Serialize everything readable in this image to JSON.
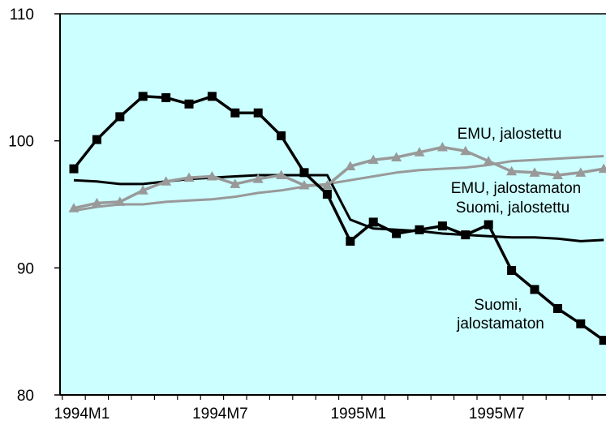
{
  "chart_data": {
    "type": "line",
    "title": "",
    "xlabel": "",
    "ylabel": "",
    "ylim": [
      80,
      110
    ],
    "yticks": [
      "80",
      "90",
      "100",
      "110"
    ],
    "x": [
      "1994M1",
      "1994M2",
      "1994M3",
      "1994M4",
      "1994M5",
      "1994M6",
      "1994M7",
      "1994M8",
      "1994M9",
      "1994M10",
      "1994M11",
      "1994M12",
      "1995M1",
      "1995M2",
      "1995M3",
      "1995M4",
      "1995M5",
      "1995M6",
      "1995M7",
      "1995M8",
      "1995M9",
      "1995M10",
      "1995M11",
      "1995M12"
    ],
    "xtick_labels": [
      "1994M1",
      "1994M7",
      "1995M1",
      "1995M7"
    ],
    "plot_background": "#ccffff",
    "grid": false,
    "legend": "inline labels",
    "series": [
      {
        "name": "Suomi, jalostamaton",
        "color": "#000000",
        "marker": "square",
        "values": [
          97.8,
          100.1,
          101.9,
          103.5,
          103.4,
          102.9,
          103.5,
          102.2,
          102.2,
          100.4,
          97.5,
          95.8,
          92.1,
          93.6,
          92.7,
          93.0,
          93.3,
          92.6,
          93.4,
          89.8,
          88.3,
          86.8,
          85.6,
          84.3
        ]
      },
      {
        "name": "EMU, jalostettu",
        "color": "#999999",
        "marker": "triangle",
        "values": [
          94.7,
          95.1,
          95.2,
          96.1,
          96.8,
          97.1,
          97.2,
          96.6,
          97.0,
          97.3,
          96.5,
          96.5,
          98.0,
          98.5,
          98.7,
          99.1,
          99.5,
          99.2,
          98.4,
          97.6,
          97.5,
          97.3,
          97.5,
          97.8
        ]
      },
      {
        "name": "EMU, jalostamaton",
        "color": "#999999",
        "marker": "none",
        "values": [
          94.5,
          94.8,
          95.0,
          95.0,
          95.2,
          95.3,
          95.4,
          95.6,
          95.9,
          96.1,
          96.4,
          96.6,
          96.9,
          97.2,
          97.5,
          97.7,
          97.8,
          97.9,
          98.1,
          98.4,
          98.5,
          98.6,
          98.7,
          98.8
        ]
      },
      {
        "name": "Suomi, jalostettu",
        "color": "#000000",
        "marker": "none",
        "values": [
          96.9,
          96.8,
          96.6,
          96.6,
          96.8,
          97.0,
          97.1,
          97.2,
          97.3,
          97.3,
          97.3,
          97.3,
          93.8,
          93.1,
          93.0,
          92.9,
          92.7,
          92.6,
          92.5,
          92.4,
          92.4,
          92.3,
          92.1,
          92.2
        ]
      }
    ],
    "annotations": [
      {
        "text": "EMU, jalostettu",
        "series": "EMU, jalostettu"
      },
      {
        "text": "EMU, jalostamaton",
        "series": "EMU, jalostamaton"
      },
      {
        "text": "Suomi, jalostettu",
        "series": "Suomi, jalostettu"
      },
      {
        "text": "Suomi,",
        "series": "Suomi, jalostamaton"
      },
      {
        "text": "jalostamaton",
        "series": "Suomi, jalostamaton"
      }
    ]
  }
}
